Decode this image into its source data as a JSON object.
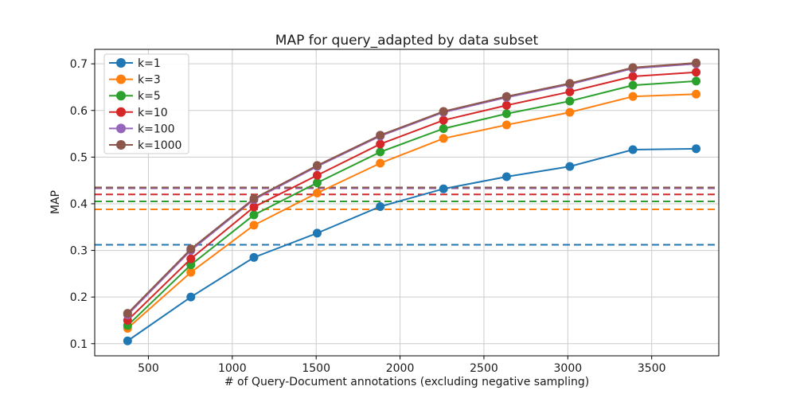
{
  "chart_data": {
    "type": "line",
    "title": "MAP for query_adapted by data subset",
    "xlabel": "# of Query-Document annotations (excluding negative sampling)",
    "ylabel": "MAP",
    "xlim": [
      180,
      3900
    ],
    "ylim": [
      0.074,
      0.731
    ],
    "xticks": [
      500,
      1000,
      1500,
      2000,
      2500,
      3000,
      3500
    ],
    "yticks": [
      0.1,
      0.2,
      0.3,
      0.4,
      0.5,
      0.6,
      0.7
    ],
    "grid": true,
    "grid_color": "#cccccc",
    "legend_position": "upper-left",
    "x": [
      376,
      753,
      1129,
      1506,
      1882,
      2259,
      2635,
      3012,
      3388,
      3765
    ],
    "series": [
      {
        "name": "k=1",
        "color": "#1f77b4",
        "values": [
          0.106,
          0.2,
          0.285,
          0.337,
          0.394,
          0.432,
          0.458,
          0.48,
          0.516,
          0.518
        ],
        "baseline": 0.312
      },
      {
        "name": "k=3",
        "color": "#ff7f0e",
        "values": [
          0.133,
          0.253,
          0.354,
          0.423,
          0.487,
          0.54,
          0.569,
          0.596,
          0.63,
          0.635
        ],
        "baseline": 0.388
      },
      {
        "name": "k=5",
        "color": "#2ca02c",
        "values": [
          0.139,
          0.269,
          0.376,
          0.445,
          0.511,
          0.561,
          0.593,
          0.62,
          0.654,
          0.663
        ],
        "baseline": 0.405
      },
      {
        "name": "k=10",
        "color": "#d62728",
        "values": [
          0.15,
          0.282,
          0.393,
          0.461,
          0.528,
          0.579,
          0.611,
          0.64,
          0.673,
          0.682
        ],
        "baseline": 0.42
      },
      {
        "name": "k=100",
        "color": "#9467bd",
        "values": [
          0.162,
          0.3,
          0.409,
          0.48,
          0.545,
          0.596,
          0.628,
          0.656,
          0.69,
          0.7
        ],
        "baseline": 0.433
      },
      {
        "name": "k=1000",
        "color": "#8c564b",
        "values": [
          0.165,
          0.303,
          0.411,
          0.482,
          0.547,
          0.598,
          0.63,
          0.658,
          0.692,
          0.702
        ],
        "baseline": 0.435
      }
    ]
  }
}
